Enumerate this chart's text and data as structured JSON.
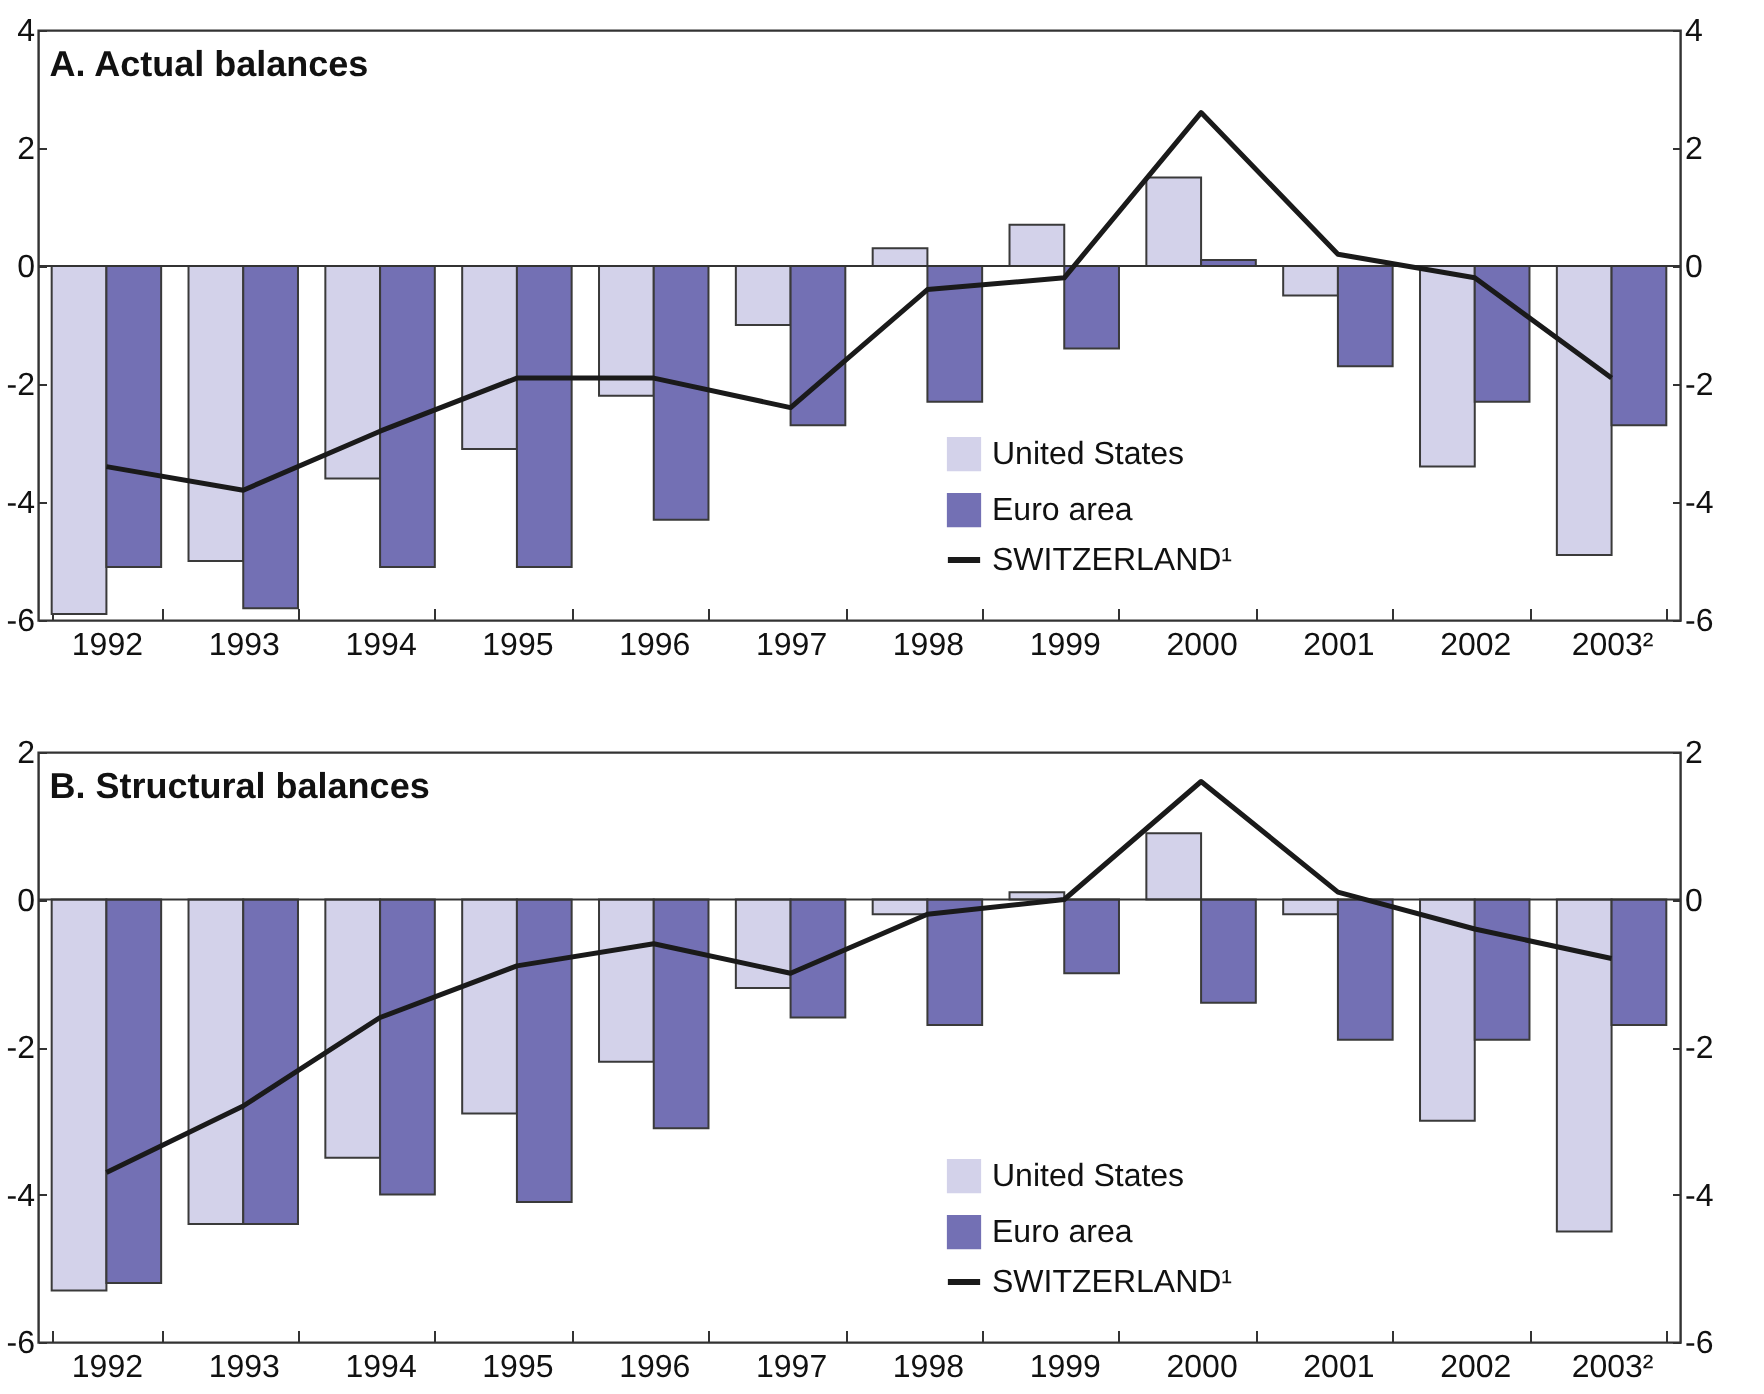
{
  "chart_data": [
    {
      "type": "bar",
      "title": "A. Actual balances",
      "categories": [
        "1992",
        "1993",
        "1994",
        "1995",
        "1996",
        "1997",
        "1998",
        "1999",
        "2000",
        "2001",
        "2002",
        "2003²"
      ],
      "series": [
        {
          "name": "United States",
          "color": "#d3d2ea",
          "values": [
            -5.9,
            -5.0,
            -3.6,
            -3.1,
            -2.2,
            -1.0,
            0.3,
            0.7,
            1.5,
            -0.5,
            -3.4,
            -4.9
          ]
        },
        {
          "name": "Euro area",
          "color": "#7370b4",
          "values": [
            -5.1,
            -5.8,
            -5.1,
            -5.1,
            -4.3,
            -2.7,
            -2.3,
            -1.4,
            0.1,
            -1.7,
            -2.3,
            -2.7
          ]
        },
        {
          "name": "SWITZERLAND¹",
          "type": "line",
          "color": "#1a1a1a",
          "values": [
            -3.4,
            -3.8,
            -2.8,
            -1.9,
            -1.9,
            -2.4,
            -0.4,
            -0.2,
            2.6,
            0.2,
            -0.2,
            -1.9
          ]
        }
      ],
      "ylim": [
        -6,
        4
      ],
      "yticks": [
        -6,
        -4,
        -2,
        0,
        2,
        4
      ],
      "y2lim": [
        -6,
        4
      ],
      "y2ticks": [
        -6,
        -4,
        -2,
        0,
        2,
        4
      ],
      "legend": "bottom right",
      "ref_lines": [
        {
          "axis": "y",
          "value": 0
        }
      ]
    },
    {
      "type": "bar",
      "title": "B. Structural balances",
      "categories": [
        "1992",
        "1993",
        "1994",
        "1995",
        "1996",
        "1997",
        "1998",
        "1999",
        "2000",
        "2001",
        "2002",
        "2003²"
      ],
      "series": [
        {
          "name": "United States",
          "color": "#d3d2ea",
          "values": [
            -5.3,
            -4.4,
            -3.5,
            -2.9,
            -2.2,
            -1.2,
            -0.2,
            0.1,
            0.9,
            -0.2,
            -3.0,
            -4.5
          ]
        },
        {
          "name": "Euro area",
          "color": "#7370b4",
          "values": [
            -5.2,
            -4.4,
            -4.0,
            -4.1,
            -3.1,
            -1.6,
            -1.7,
            -1.0,
            -1.4,
            -1.9,
            -1.9,
            -1.7
          ]
        },
        {
          "name": "SWITZERLAND¹",
          "type": "line",
          "color": "#1a1a1a",
          "values": [
            -3.7,
            -2.8,
            -1.6,
            -0.9,
            -0.6,
            -1.0,
            -0.2,
            0.0,
            1.6,
            0.1,
            -0.4,
            -0.8
          ]
        }
      ],
      "ylim": [
        -6,
        2
      ],
      "yticks": [
        -6,
        -4,
        -2,
        0,
        2
      ],
      "y2lim": [
        -6,
        2
      ],
      "y2ticks": [
        -6,
        -4,
        -2,
        0,
        2
      ],
      "legend": "bottom right",
      "ref_lines": [
        {
          "axis": "y",
          "value": 0
        }
      ]
    }
  ]
}
